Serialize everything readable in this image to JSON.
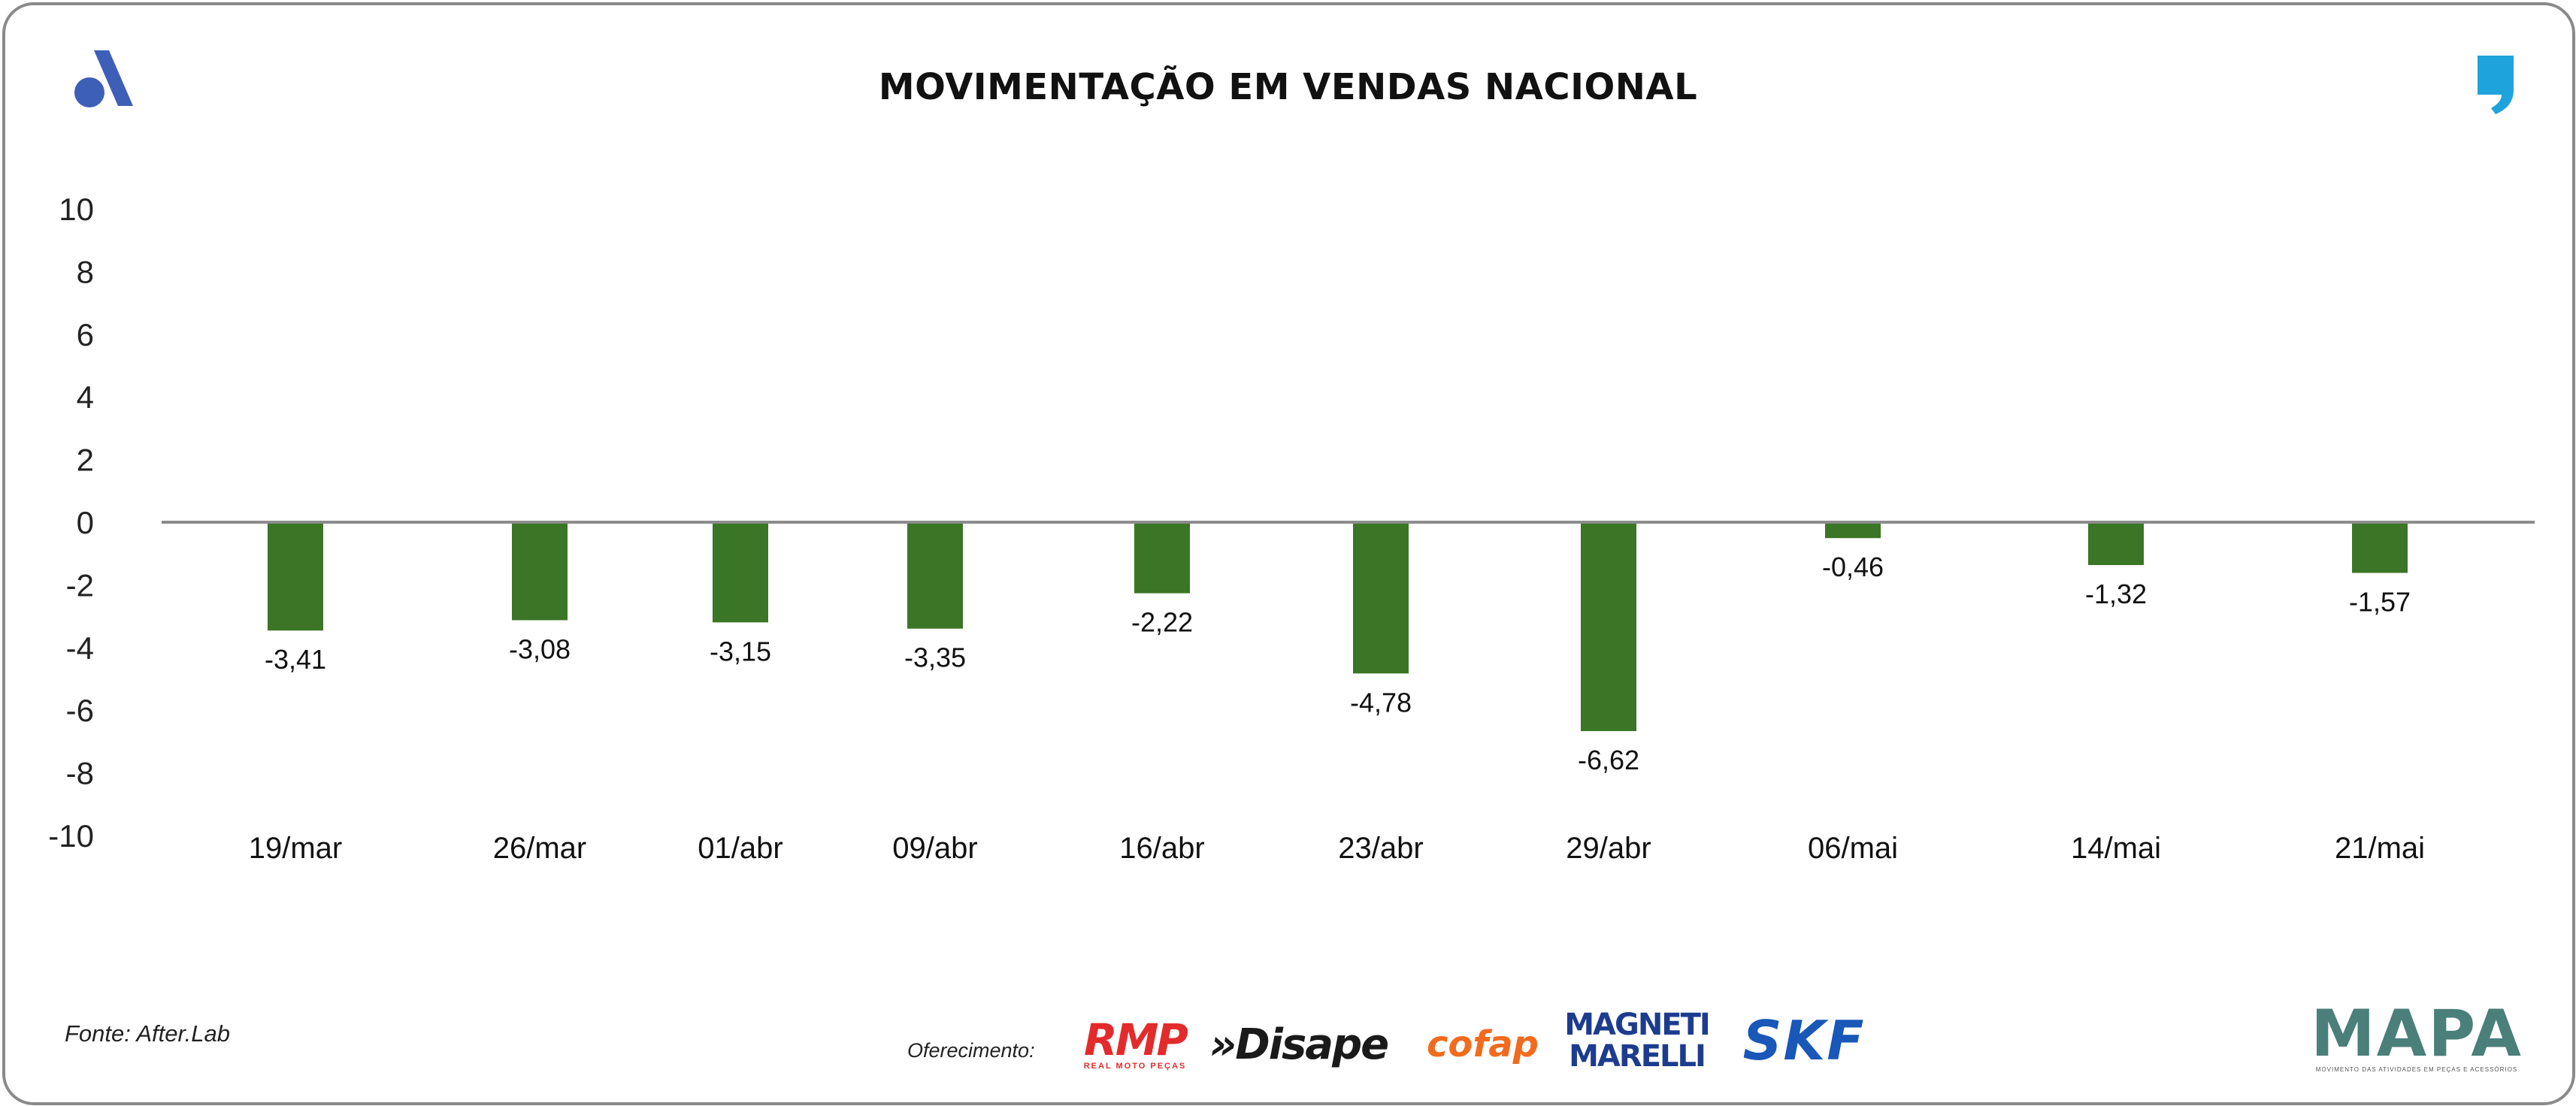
{
  "title": "MOVIMENTAÇÃO EM VENDAS NACIONAL",
  "source": "Fonte: After.Lab",
  "sponsor_label": "Oferecimento:",
  "sponsors": {
    "rmp": "RMP",
    "rmp_sub": "REAL MOTO PEÇAS",
    "disape": "»Disape",
    "cofap": "cofap",
    "magneti_1": "MAGNETI",
    "magneti_2": "MARELLI",
    "skf": "SKF",
    "mapa": "MAPA",
    "mapa_sub": "MOVIMENTO DAS ATIVIDADES EM PEÇAS E ACESSÓRIOS"
  },
  "colors": {
    "bar": "#3b7526",
    "zero_line": "#8c8c8c",
    "brand_left": "#3e5fb8",
    "brand_right": "#1fa3dc"
  },
  "icons": [
    "brand-a-logo-icon",
    "quote-mark-logo-icon"
  ],
  "chart_data": {
    "type": "bar",
    "title": "MOVIMENTAÇÃO EM VENDAS NACIONAL",
    "xlabel": "",
    "ylabel": "",
    "categories": [
      "19/mar",
      "26/mar",
      "01/abr",
      "09/abr",
      "16/abr",
      "23/abr",
      "29/abr",
      "06/mai",
      "14/mai",
      "21/mai"
    ],
    "values": [
      -3.41,
      -3.08,
      -3.15,
      -3.35,
      -2.22,
      -4.78,
      -6.62,
      -0.46,
      -1.32,
      -1.57
    ],
    "value_labels": [
      "-3,41",
      "-3,08",
      "-3,15",
      "-3,35",
      "-2,22",
      "-4,78",
      "-6,62",
      "-0,46",
      "-1,32",
      "-1,57"
    ],
    "yticks": [
      "10",
      "8",
      "6",
      "4",
      "2",
      "0",
      "-2",
      "-4",
      "-6",
      "-8",
      "-10"
    ],
    "ylim": [
      -10,
      10
    ],
    "grid": false,
    "legend": "none"
  }
}
